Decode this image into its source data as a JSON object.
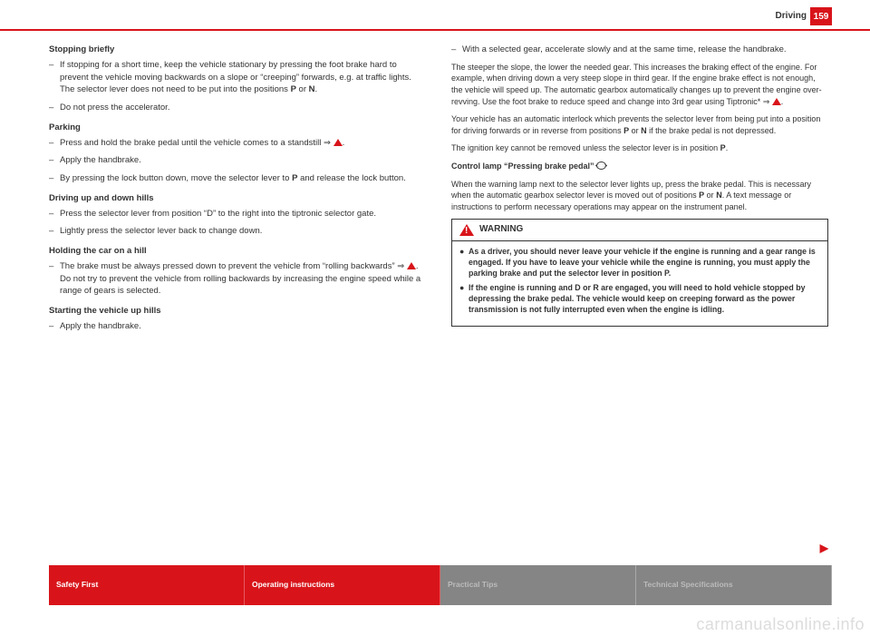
{
  "header": {
    "section": "Driving",
    "page": "159"
  },
  "left": {
    "h1": "Stopping briefly",
    "l1": "If stopping for a short time, keep the vehicle stationary by pressing the foot brake hard to prevent the vehicle moving backwards on a slope or “creeping” forwards, e.g. at traffic lights. The selector lever does not need to be put into the positions ",
    "l1b": "P",
    "l1c": " or ",
    "l1d": "N",
    "l1e": ".",
    "l2": "Do not press the accelerator.",
    "h2": "Parking",
    "l3": "Press and hold the brake pedal until the vehicle comes to a standstill ⇒ ",
    "l4": "Apply the handbrake.",
    "l5a": "By pressing the lock button down, move the selector lever to ",
    "l5b": "P",
    "l5c": " and release the lock button.",
    "h3": "Driving up and down hills",
    "l6": "Press the selector lever from position “D” to the right into the tiptronic selector gate.",
    "l7": "Lightly press the selector lever back to change down.",
    "h4": "Holding the car on a hill",
    "l8a": "The brake must be always pressed down to prevent the vehicle from “rolling backwards” ⇒ ",
    "l8b": ". Do not try to prevent the vehicle from rolling backwards by increasing the engine speed while a range of gears is selected.",
    "h5": "Starting the vehicle up hills",
    "l9": "Apply the handbrake."
  },
  "right": {
    "l1": "With a selected gear, accelerate slowly and at the same time, release the handbrake.",
    "p1": "The steeper the slope, the lower the needed gear. This increases the braking effect of the engine. For example, when driving down a very steep slope in third gear. If the engine brake effect is not enough, the vehicle will speed up. The automatic gearbox automatically changes up to prevent the engine over-revving. Use the foot brake to reduce speed and change into 3rd gear using Tiptronic* ⇒ ",
    "p2a": "Your vehicle has an automatic interlock which prevents the selector lever from being put into a position for driving forwards or in reverse from positions ",
    "p2b": "P",
    "p2c": " or ",
    "p2d": "N",
    "p2e": " if the brake pedal is not depressed.",
    "p3a": "The ignition key cannot be removed unless the selector lever is in position ",
    "p3b": "P",
    "p3c": ".",
    "h1": "Control lamp “Pressing brake pedal” ",
    "p4a": "When the warning lamp next to the selector lever lights up, press the brake pedal. This is necessary when the automatic gearbox selector lever is moved out of positions ",
    "p4b": "P",
    "p4c": " or ",
    "p4d": "N",
    "p4e": ". A text message or instructions to perform necessary operations may appear on the instrument panel.",
    "warn_title": "WARNING",
    "w1": "As a driver, you should never leave your vehicle if the engine is running and a gear range is engaged. If you have to leave your vehicle while the engine is running, you must apply the parking brake and put the selector lever in position P.",
    "w2": "If the engine is running and D or R are engaged, you will need to hold vehicle stopped by depressing the brake pedal. The vehicle would keep on creeping forward as the power transmission is not fully interrupted even when the engine is idling."
  },
  "footer": {
    "t1": "Safety First",
    "t2": "Operating instructions",
    "t3": "Practical Tips",
    "t4": "Technical Specifications"
  },
  "watermark": "carmanualsonline.info"
}
